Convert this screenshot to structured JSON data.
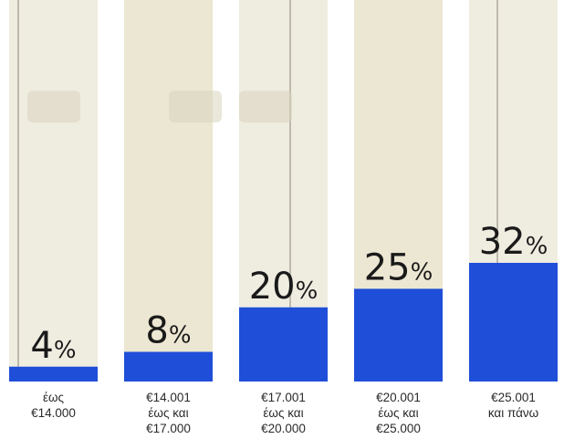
{
  "chart_data": {
    "type": "bar",
    "title": "",
    "xlabel": "",
    "ylabel": "",
    "categories": [
      [
        "έως",
        "€14.000"
      ],
      [
        "€14.001",
        "έως και",
        "€17.000"
      ],
      [
        "€17.001",
        "έως και",
        "€20.000"
      ],
      [
        "€20.001",
        "έως και",
        "€25.000"
      ],
      [
        "€25.001",
        "και πάνω"
      ]
    ],
    "values": [
      4,
      8,
      20,
      25,
      32
    ],
    "value_suffix": "%",
    "ylim": [
      0,
      32
    ],
    "grid": false,
    "bar_color": "#1f4ed8"
  }
}
